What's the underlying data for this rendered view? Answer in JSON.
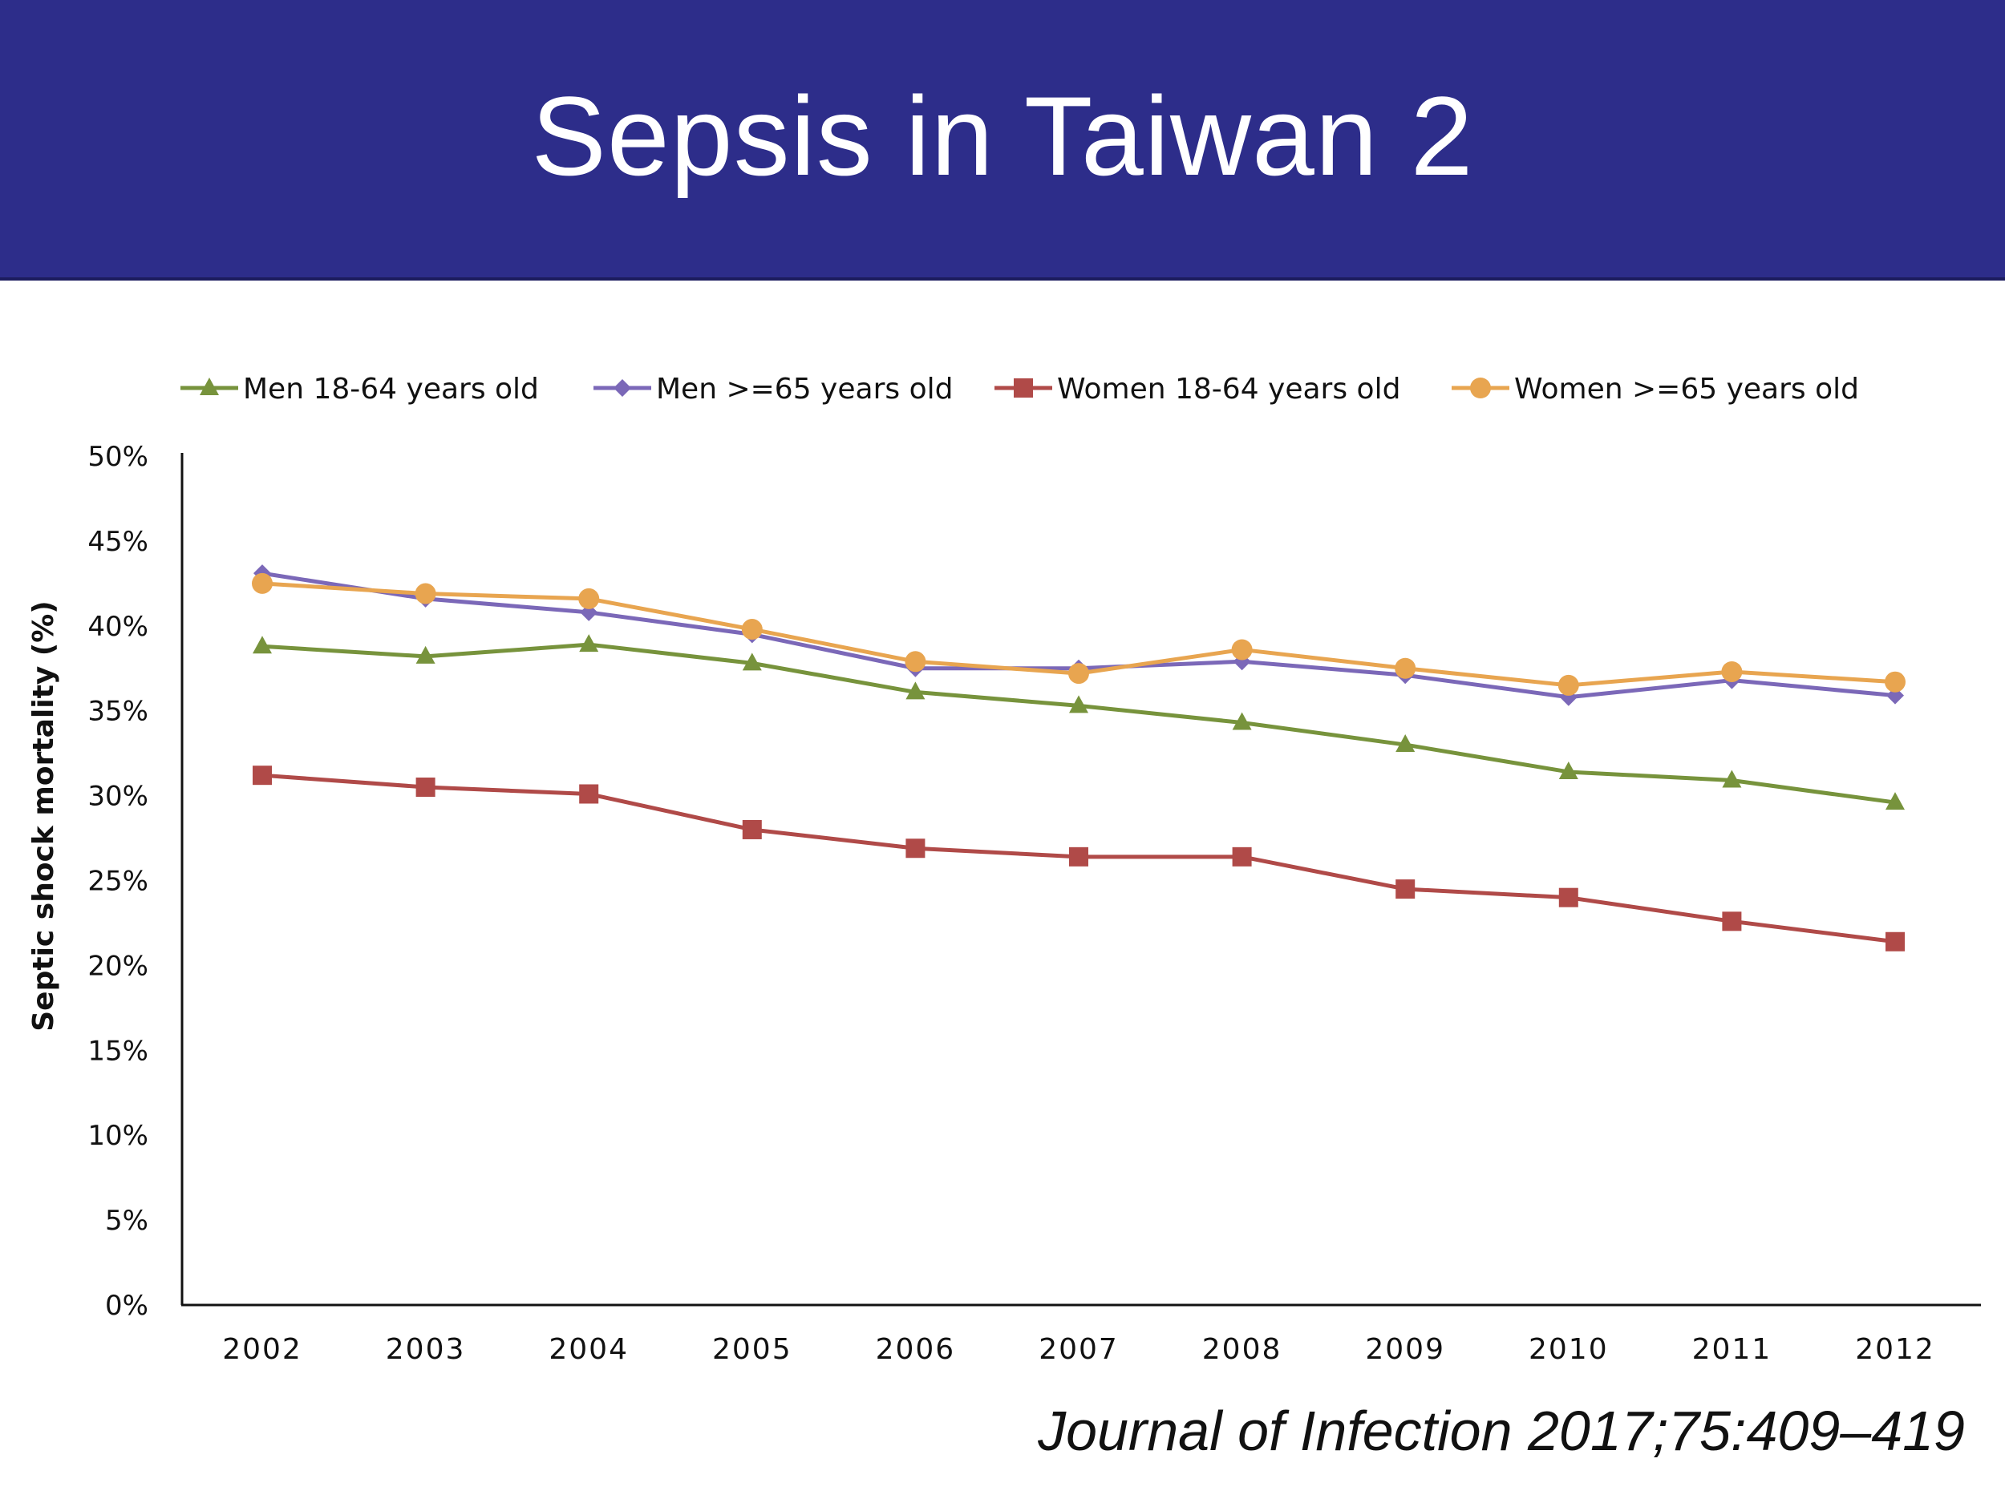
{
  "slide": {
    "title": "Sepsis in Taiwan 2",
    "citation": "Journal of Infection 2017;75:409–419"
  },
  "colors": {
    "header_bg": "#2d2d8a",
    "title_text": "#ffffff",
    "axis": "#111111"
  },
  "chart_data": {
    "type": "line",
    "title": "",
    "xlabel": "",
    "ylabel": "Septic shock mortality (%)",
    "ylim": [
      0,
      50
    ],
    "yticks": [
      0,
      5,
      10,
      15,
      20,
      25,
      30,
      35,
      40,
      45,
      50
    ],
    "ytick_labels": [
      "0%",
      "5%",
      "10%",
      "15%",
      "20%",
      "25%",
      "30%",
      "35%",
      "40%",
      "45%",
      "50%"
    ],
    "categories": [
      "2002",
      "2003",
      "2004",
      "2005",
      "2006",
      "2007",
      "2008",
      "2009",
      "2010",
      "2011",
      "2012"
    ],
    "grid": false,
    "legend_position": "top",
    "series": [
      {
        "name": "Men 18-64 years old",
        "marker": "triangle",
        "color": "#77933c",
        "values": [
          38.8,
          38.2,
          38.9,
          37.8,
          36.1,
          35.3,
          34.3,
          33.0,
          31.4,
          30.9,
          29.6
        ]
      },
      {
        "name": "Men >=65 years old",
        "marker": "diamond",
        "color": "#7b68b8",
        "values": [
          43.1,
          41.6,
          40.8,
          39.5,
          37.5,
          37.5,
          37.9,
          37.1,
          35.8,
          36.8,
          35.9
        ]
      },
      {
        "name": "Women 18-64 years old",
        "marker": "square",
        "color": "#b04a48",
        "values": [
          31.2,
          30.5,
          30.1,
          28.0,
          26.9,
          26.4,
          26.4,
          24.5,
          24.0,
          22.6,
          21.4
        ]
      },
      {
        "name": "Women >=65 years old",
        "marker": "circle",
        "color": "#e8a550",
        "values": [
          42.5,
          41.9,
          41.6,
          39.8,
          37.9,
          37.2,
          38.6,
          37.5,
          36.5,
          37.3,
          36.7
        ]
      }
    ]
  }
}
